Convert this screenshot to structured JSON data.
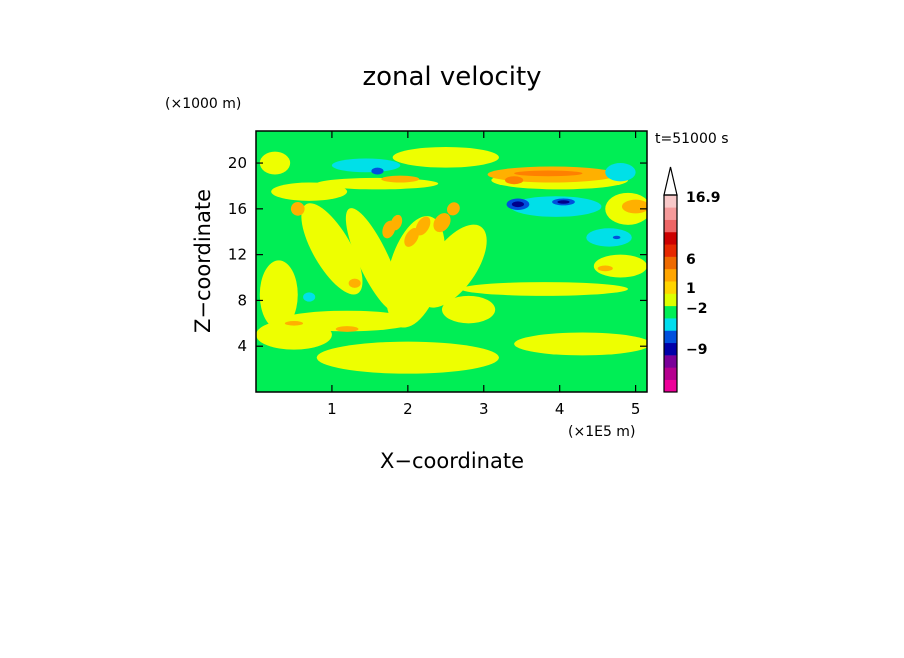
{
  "chart_data": {
    "type": "heatmap",
    "title": "zonal velocity",
    "xlabel": "X−coordinate",
    "ylabel": "Z−coordinate",
    "x_multiplier": "(×1E5 m)",
    "y_multiplier": "(×1000 m)",
    "time_label": "t=51000 s",
    "xlim": [
      0,
      5.15
    ],
    "ylim": [
      0,
      22.8
    ],
    "x_ticks": [
      1,
      2,
      3,
      4,
      5
    ],
    "x_tick_labels": [
      "1",
      "2",
      "3",
      "4",
      "5"
    ],
    "y_ticks": [
      4,
      8,
      12,
      16,
      20
    ],
    "y_tick_labels": [
      "4",
      "8",
      "12",
      "16",
      "20"
    ],
    "background_color": "#00ee55",
    "colorbar": {
      "labels": [
        "16.9",
        "6",
        "1",
        "−2",
        "−9"
      ],
      "levels_bottom_to_top": [
        {
          "color": "#ee0099"
        },
        {
          "color": "#b5008f"
        },
        {
          "color": "#7a0099"
        },
        {
          "color": "#0000a8"
        },
        {
          "color": "#0050dd"
        },
        {
          "color": "#00ddee"
        },
        {
          "color": "#00ee55"
        },
        {
          "color": "#ddff00"
        },
        {
          "color": "#ffd400"
        },
        {
          "color": "#ffa500"
        },
        {
          "color": "#ee6a00"
        },
        {
          "color": "#e62800"
        },
        {
          "color": "#cc0000"
        },
        {
          "color": "#ee6666"
        },
        {
          "color": "#f59a9a"
        },
        {
          "color": "#f8c8c8"
        }
      ]
    },
    "regions": [
      {
        "color": "#eeff00",
        "shape": "ellipse",
        "x": 2.0,
        "y": 3.0,
        "rx": 1.2,
        "ry": 1.4,
        "rot": 0
      },
      {
        "color": "#eeff00",
        "shape": "ellipse",
        "x": 4.3,
        "y": 4.2,
        "rx": 0.9,
        "ry": 1.0,
        "rot": 0
      },
      {
        "color": "#eeff00",
        "shape": "ellipse",
        "x": 0.5,
        "y": 5.0,
        "rx": 0.5,
        "ry": 1.3,
        "rot": 0
      },
      {
        "color": "#eeff00",
        "shape": "ellipse",
        "x": 1.2,
        "y": 6.2,
        "rx": 0.9,
        "ry": 0.9,
        "rot": 0
      },
      {
        "color": "#eeff00",
        "shape": "ellipse",
        "x": 0.3,
        "y": 8.5,
        "rx": 0.25,
        "ry": 3.0,
        "rot": 0
      },
      {
        "color": "#eeff00",
        "shape": "ellipse",
        "x": 1.0,
        "y": 12.5,
        "rx": 0.25,
        "ry": 4.5,
        "rot": -30
      },
      {
        "color": "#eeff00",
        "shape": "ellipse",
        "x": 1.55,
        "y": 11.5,
        "rx": 0.2,
        "ry": 5.0,
        "rot": -25
      },
      {
        "color": "#eeff00",
        "shape": "ellipse",
        "x": 2.1,
        "y": 10.5,
        "rx": 0.35,
        "ry": 5.0,
        "rot": 15
      },
      {
        "color": "#eeff00",
        "shape": "ellipse",
        "x": 2.6,
        "y": 11.0,
        "rx": 0.3,
        "ry": 4.2,
        "rot": 35
      },
      {
        "color": "#eeff00",
        "shape": "ellipse",
        "x": 0.7,
        "y": 17.5,
        "rx": 0.5,
        "ry": 0.8,
        "rot": 0
      },
      {
        "color": "#eeff00",
        "shape": "ellipse",
        "x": 1.6,
        "y": 18.2,
        "rx": 0.8,
        "ry": 0.5,
        "rot": 0
      },
      {
        "color": "#eeff00",
        "shape": "ellipse",
        "x": 2.5,
        "y": 20.5,
        "rx": 0.7,
        "ry": 0.9,
        "rot": 0
      },
      {
        "color": "#eeff00",
        "shape": "ellipse",
        "x": 0.25,
        "y": 20.0,
        "rx": 0.2,
        "ry": 1.0,
        "rot": 0
      },
      {
        "color": "#eeff00",
        "shape": "ellipse",
        "x": 4.0,
        "y": 18.5,
        "rx": 0.9,
        "ry": 0.8,
        "rot": 0
      },
      {
        "color": "#eeff00",
        "shape": "ellipse",
        "x": 4.9,
        "y": 16.0,
        "rx": 0.3,
        "ry": 1.4,
        "rot": 0
      },
      {
        "color": "#eeff00",
        "shape": "ellipse",
        "x": 4.8,
        "y": 11.0,
        "rx": 0.35,
        "ry": 1.0,
        "rot": 0
      },
      {
        "color": "#eeff00",
        "shape": "ellipse",
        "x": 3.8,
        "y": 9.0,
        "rx": 1.1,
        "ry": 0.6,
        "rot": 0
      },
      {
        "color": "#eeff00",
        "shape": "ellipse",
        "x": 2.8,
        "y": 7.2,
        "rx": 0.35,
        "ry": 1.2,
        "rot": 0
      },
      {
        "color": "#ffb000",
        "shape": "ellipse",
        "x": 0.55,
        "y": 16.0,
        "rx": 0.09,
        "ry": 0.6,
        "rot": -20
      },
      {
        "color": "#ffb000",
        "shape": "ellipse",
        "x": 1.75,
        "y": 14.2,
        "rx": 0.08,
        "ry": 0.8,
        "rot": 20
      },
      {
        "color": "#ffb000",
        "shape": "ellipse",
        "x": 1.85,
        "y": 14.8,
        "rx": 0.07,
        "ry": 0.7,
        "rot": 20
      },
      {
        "color": "#ffb000",
        "shape": "ellipse",
        "x": 2.05,
        "y": 13.5,
        "rx": 0.08,
        "ry": 0.9,
        "rot": 30
      },
      {
        "color": "#ffb000",
        "shape": "ellipse",
        "x": 2.2,
        "y": 14.5,
        "rx": 0.08,
        "ry": 0.9,
        "rot": 30
      },
      {
        "color": "#ffb000",
        "shape": "ellipse",
        "x": 2.45,
        "y": 14.8,
        "rx": 0.1,
        "ry": 0.9,
        "rot": 35
      },
      {
        "color": "#ffb000",
        "shape": "ellipse",
        "x": 2.6,
        "y": 16.0,
        "rx": 0.08,
        "ry": 0.6,
        "rot": 40
      },
      {
        "color": "#ffb000",
        "shape": "ellipse",
        "x": 1.9,
        "y": 18.6,
        "rx": 0.25,
        "ry": 0.3,
        "rot": 0
      },
      {
        "color": "#ffb000",
        "shape": "ellipse",
        "x": 0.5,
        "y": 6.0,
        "rx": 0.12,
        "ry": 0.2,
        "rot": 0
      },
      {
        "color": "#ffb000",
        "shape": "ellipse",
        "x": 1.2,
        "y": 5.5,
        "rx": 0.15,
        "ry": 0.25,
        "rot": 0
      },
      {
        "color": "#ffb000",
        "shape": "ellipse",
        "x": 4.6,
        "y": 10.8,
        "rx": 0.1,
        "ry": 0.25,
        "rot": 0
      },
      {
        "color": "#ffb000",
        "shape": "ellipse",
        "x": 1.3,
        "y": 9.5,
        "rx": 0.08,
        "ry": 0.4,
        "rot": 0
      },
      {
        "color": "#ffb000",
        "shape": "ellipse",
        "x": 3.9,
        "y": 19.0,
        "rx": 0.85,
        "ry": 0.7,
        "rot": 0
      },
      {
        "color": "#ffb000",
        "shape": "ellipse",
        "x": 5.0,
        "y": 16.2,
        "rx": 0.18,
        "ry": 0.6,
        "rot": 0
      },
      {
        "color": "#ff8000",
        "shape": "ellipse",
        "x": 3.85,
        "y": 19.1,
        "rx": 0.45,
        "ry": 0.25,
        "rot": 0
      },
      {
        "color": "#ff8000",
        "shape": "ellipse",
        "x": 3.4,
        "y": 18.5,
        "rx": 0.12,
        "ry": 0.35,
        "rot": 0
      },
      {
        "color": "#00e0e8",
        "shape": "ellipse",
        "x": 1.45,
        "y": 19.8,
        "rx": 0.45,
        "ry": 0.6,
        "rot": 0
      },
      {
        "color": "#00e0e8",
        "shape": "ellipse",
        "x": 3.95,
        "y": 16.2,
        "rx": 0.6,
        "ry": 0.9,
        "rot": 0
      },
      {
        "color": "#00e0e8",
        "shape": "ellipse",
        "x": 4.65,
        "y": 13.5,
        "rx": 0.3,
        "ry": 0.8,
        "rot": 0
      },
      {
        "color": "#00e0e8",
        "shape": "ellipse",
        "x": 4.8,
        "y": 19.2,
        "rx": 0.2,
        "ry": 0.8,
        "rot": 0
      },
      {
        "color": "#00e0e8",
        "shape": "ellipse",
        "x": 0.7,
        "y": 8.3,
        "rx": 0.08,
        "ry": 0.4,
        "rot": 0
      },
      {
        "color": "#0050dd",
        "shape": "ellipse",
        "x": 1.6,
        "y": 19.3,
        "rx": 0.08,
        "ry": 0.3,
        "rot": 0
      },
      {
        "color": "#0050dd",
        "shape": "ellipse",
        "x": 3.45,
        "y": 16.4,
        "rx": 0.15,
        "ry": 0.5,
        "rot": 0
      },
      {
        "color": "#0050dd",
        "shape": "ellipse",
        "x": 4.05,
        "y": 16.6,
        "rx": 0.15,
        "ry": 0.3,
        "rot": 0
      },
      {
        "color": "#0050dd",
        "shape": "ellipse",
        "x": 4.75,
        "y": 13.5,
        "rx": 0.05,
        "ry": 0.15,
        "rot": 0
      },
      {
        "color": "#00008b",
        "shape": "ellipse",
        "x": 3.45,
        "y": 16.4,
        "rx": 0.08,
        "ry": 0.25,
        "rot": 0
      },
      {
        "color": "#00008b",
        "shape": "ellipse",
        "x": 4.05,
        "y": 16.6,
        "rx": 0.08,
        "ry": 0.15,
        "rot": 0
      }
    ]
  }
}
